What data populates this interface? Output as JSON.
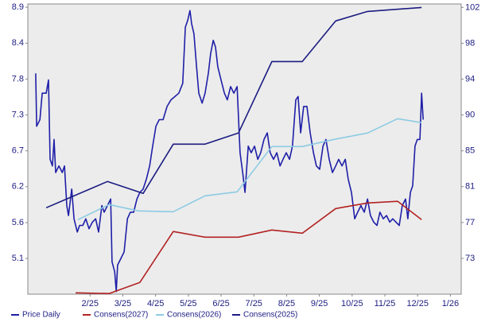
{
  "chart_data": {
    "type": "line",
    "xlim": [
      -0.9,
      12.33
    ],
    "xticks": [
      {
        "value": 1,
        "label": "2/25"
      },
      {
        "value": 2,
        "label": "3/25"
      },
      {
        "value": 3,
        "label": "4/25"
      },
      {
        "value": 4,
        "label": "5/25"
      },
      {
        "value": 5,
        "label": "6/25"
      },
      {
        "value": 6,
        "label": "7/25"
      },
      {
        "value": 7,
        "label": "8/25"
      },
      {
        "value": 8,
        "label": "9/25"
      },
      {
        "value": 9,
        "label": "10/25"
      },
      {
        "value": 10,
        "label": "11/25"
      },
      {
        "value": 11,
        "label": "12/25"
      },
      {
        "value": 12,
        "label": "1/26"
      }
    ],
    "ylim": [
      4.56,
      8.95
    ],
    "yticks": [
      {
        "value": 5.1,
        "label": "5.1"
      },
      {
        "value": 5.643,
        "label": "5.6"
      },
      {
        "value": 6.186,
        "label": "6.2"
      },
      {
        "value": 6.729,
        "label": "6.7"
      },
      {
        "value": 7.271,
        "label": "7.3"
      },
      {
        "value": 7.814,
        "label": "7.8"
      },
      {
        "value": 8.357,
        "label": "8.4"
      },
      {
        "value": 8.9,
        "label": "8.9"
      }
    ],
    "y2lim": [
      68.86,
      102.4
    ],
    "y2ticks": [
      73,
      {
        "value": 77.14,
        "label": "77"
      },
      {
        "value": 81.29,
        "label": "81"
      },
      {
        "value": 85.43,
        "label": "85"
      },
      {
        "value": 89.57,
        "label": "90"
      },
      {
        "value": 93.71,
        "label": "94"
      },
      {
        "value": 97.86,
        "label": "98"
      },
      102
    ],
    "series": [
      {
        "name": "Price Daily",
        "color": "#1f1fa8",
        "axis": "y",
        "x": [
          -0.66,
          -0.63,
          -0.53,
          -0.46,
          -0.34,
          -0.27,
          -0.22,
          -0.15,
          -0.1,
          -0.05,
          0.05,
          0.15,
          0.22,
          0.29,
          0.34,
          0.44,
          0.51,
          0.61,
          0.68,
          0.78,
          0.87,
          0.97,
          1.07,
          1.17,
          1.26,
          1.36,
          1.43,
          1.53,
          1.63,
          1.67,
          1.75,
          1.8,
          1.84,
          1.94,
          2.04,
          2.14,
          2.23,
          2.33,
          2.43,
          2.52,
          2.62,
          2.72,
          2.82,
          2.91,
          3.01,
          3.11,
          3.23,
          3.35,
          3.47,
          3.59,
          3.71,
          3.83,
          3.91,
          3.98,
          4.05,
          4.1,
          4.17,
          4.25,
          4.32,
          4.42,
          4.51,
          4.61,
          4.68,
          4.76,
          4.83,
          4.9,
          5.0,
          5.1,
          5.19,
          5.29,
          5.39,
          5.49,
          5.58,
          5.66,
          5.73,
          5.83,
          5.92,
          6.02,
          6.12,
          6.21,
          6.31,
          6.41,
          6.5,
          6.6,
          6.7,
          6.8,
          6.89,
          6.99,
          7.09,
          7.18,
          7.28,
          7.35,
          7.43,
          7.52,
          7.62,
          7.72,
          7.82,
          7.91,
          8.01,
          8.11,
          8.2,
          8.3,
          8.4,
          8.5,
          8.59,
          8.69,
          8.79,
          8.88,
          8.98,
          9.08,
          9.17,
          9.27,
          9.37,
          9.47,
          9.56,
          9.66,
          9.76,
          9.85,
          9.95,
          10.05,
          10.15,
          10.24,
          10.34,
          10.44,
          10.53,
          10.63,
          10.7,
          10.78,
          10.85,
          10.92,
          10.99,
          11.07,
          11.12,
          11.17
        ],
        "values": [
          7.9,
          7.1,
          7.2,
          7.6,
          7.6,
          7.8,
          6.6,
          6.5,
          6.9,
          6.4,
          6.5,
          6.4,
          6.5,
          5.9,
          5.75,
          6.15,
          5.7,
          5.5,
          5.6,
          5.6,
          5.7,
          5.55,
          5.65,
          5.7,
          5.5,
          5.9,
          5.8,
          5.9,
          6.0,
          5.05,
          4.9,
          4.6,
          5.0,
          5.1,
          5.2,
          5.7,
          5.8,
          5.8,
          6.0,
          6.1,
          6.15,
          6.3,
          6.5,
          6.8,
          7.1,
          7.2,
          7.2,
          7.4,
          7.5,
          7.55,
          7.6,
          7.75,
          8.6,
          8.7,
          8.85,
          8.65,
          8.5,
          8.0,
          7.6,
          7.45,
          7.6,
          7.9,
          8.2,
          8.4,
          8.3,
          8.0,
          7.8,
          7.6,
          7.5,
          7.7,
          7.6,
          7.7,
          6.7,
          6.4,
          6.1,
          6.8,
          6.7,
          6.8,
          6.6,
          6.7,
          6.9,
          7.0,
          6.7,
          6.6,
          6.7,
          6.5,
          6.6,
          6.7,
          6.6,
          6.8,
          7.5,
          7.55,
          7.0,
          7.4,
          7.4,
          7.0,
          6.7,
          6.5,
          6.45,
          6.8,
          6.9,
          6.6,
          6.4,
          6.5,
          6.6,
          6.5,
          6.6,
          6.3,
          6.1,
          5.7,
          5.8,
          5.9,
          5.8,
          6.0,
          5.75,
          5.65,
          5.6,
          5.8,
          5.7,
          5.75,
          5.65,
          5.7,
          5.65,
          5.6,
          5.9,
          6.0,
          5.7,
          6.1,
          6.2,
          6.8,
          6.9,
          6.9,
          7.6,
          7.2
        ]
      },
      {
        "name": "Consens(2027)",
        "color": "#b32222",
        "axis": "y2",
        "x": [
          0.56,
          1.58,
          2.52,
          3.54,
          4.51,
          5.53,
          6.55,
          7.48,
          8.5,
          9.47,
          10.39,
          11.12
        ],
        "values": [
          69.02,
          68.93,
          70.22,
          76.1,
          75.45,
          75.45,
          76.28,
          75.91,
          78.76,
          79.4,
          79.59,
          77.47
        ]
      },
      {
        "name": "Consens(2026)",
        "color": "#8ccbe3",
        "axis": "y2",
        "x": [
          0.63,
          1.58,
          2.48,
          3.54,
          4.51,
          5.49,
          6.55,
          7.48,
          8.45,
          9.47,
          10.39,
          11.12
        ],
        "values": [
          77.47,
          79.22,
          78.48,
          78.39,
          80.23,
          80.69,
          85.92,
          85.92,
          86.75,
          87.49,
          89.14,
          88.68
        ]
      },
      {
        "name": "Consens(2025)",
        "color": "#1c1c82",
        "axis": "y2",
        "x": [
          -0.34,
          1.53,
          2.62,
          3.54,
          4.51,
          5.53,
          6.55,
          7.48,
          8.5,
          9.47,
          11.12
        ],
        "values": [
          78.85,
          81.88,
          80.5,
          86.2,
          86.2,
          87.49,
          95.75,
          95.75,
          100.44,
          101.54,
          102
        ]
      }
    ]
  }
}
